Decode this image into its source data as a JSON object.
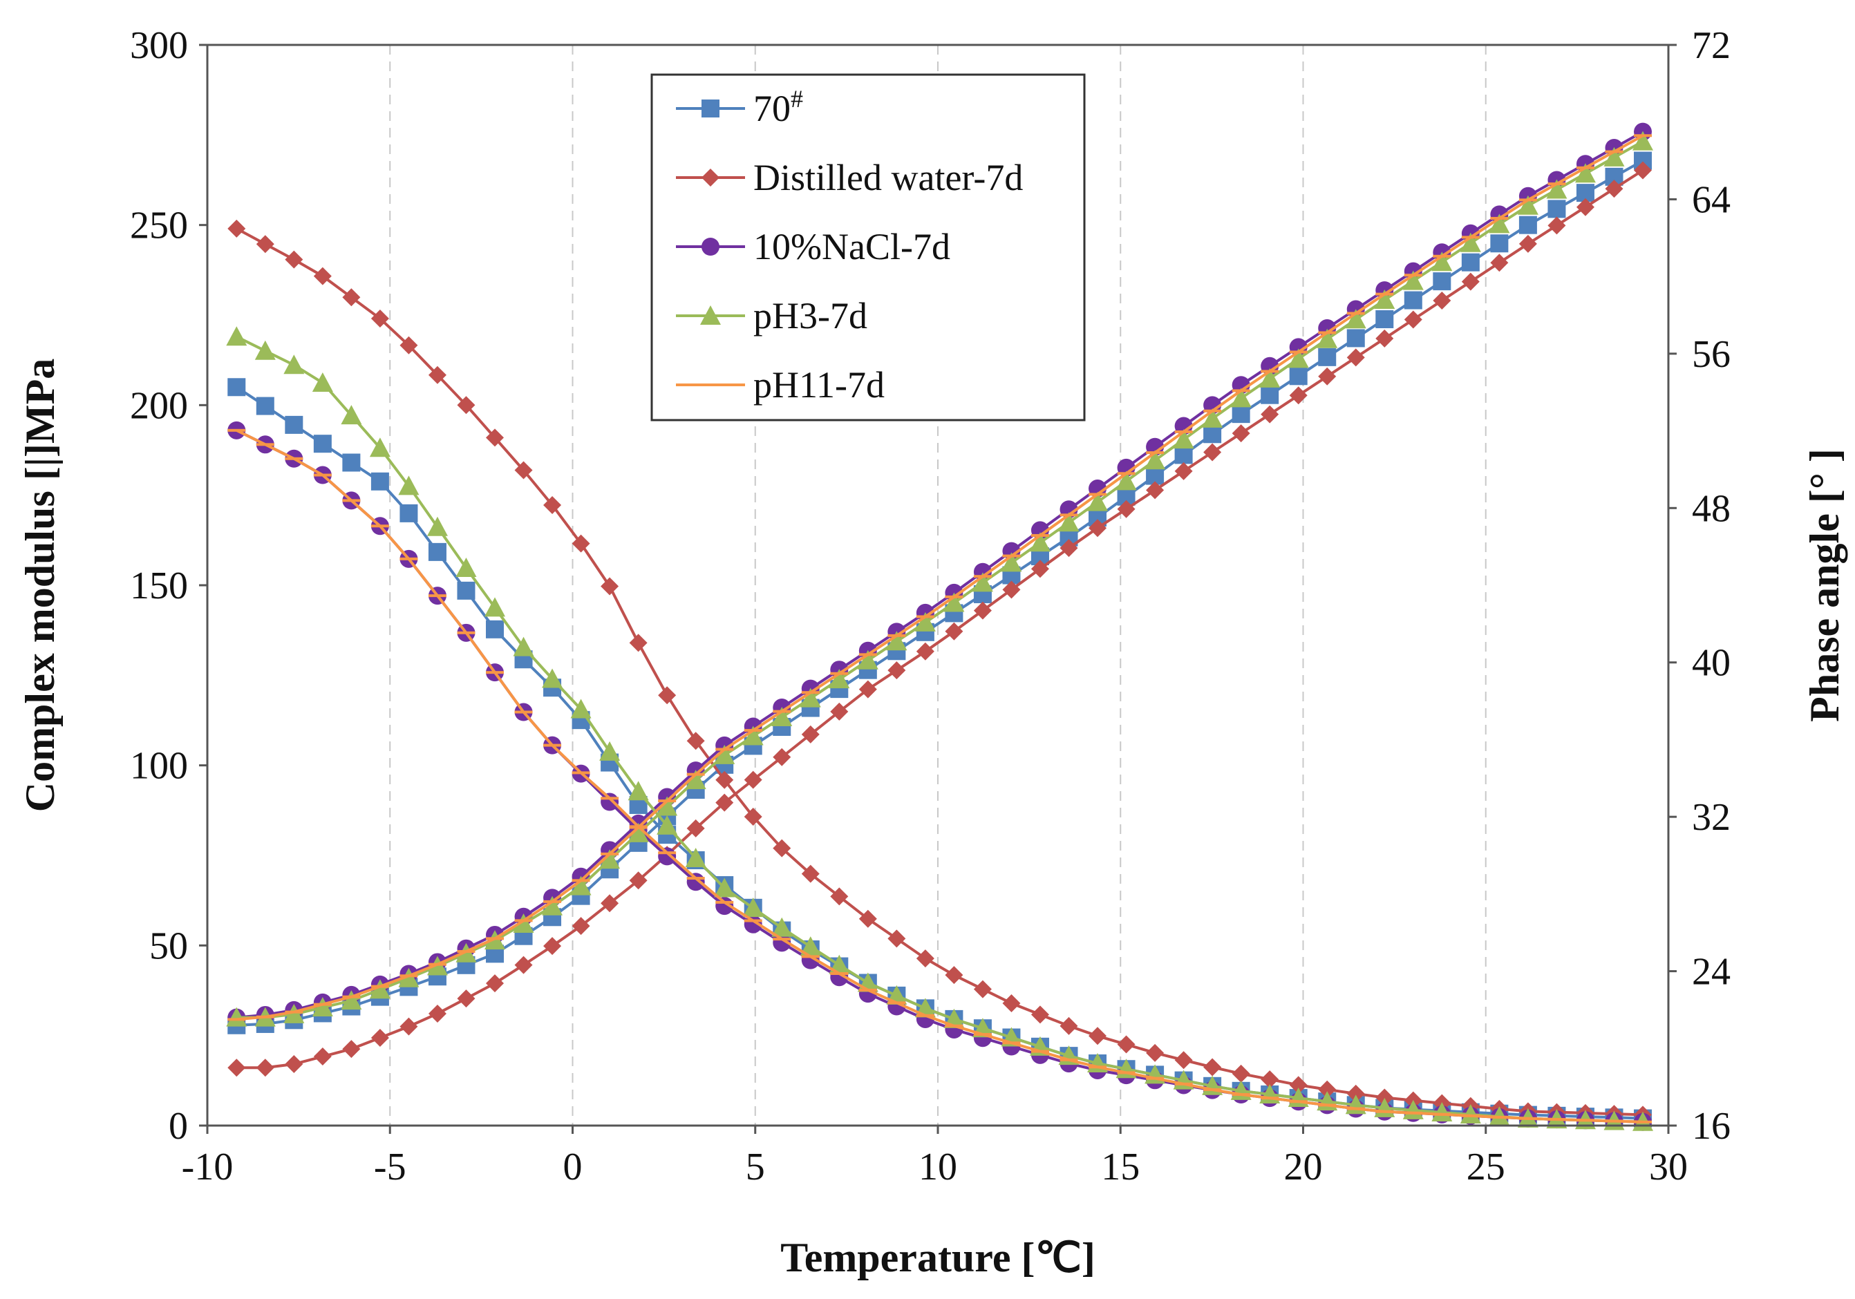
{
  "chart_data": {
    "type": "line",
    "title": "",
    "xlabel": "Temperature [℃]",
    "ylabel_left": "Complex modulus [|]MPa",
    "ylabel_right": "Phase angle [° ]",
    "xlim": [
      -10,
      30
    ],
    "ylim_left": [
      0,
      300
    ],
    "ylim_right": [
      16,
      72
    ],
    "x_ticks": [
      "-10",
      "-5",
      "0",
      "5",
      "10",
      "15",
      "20",
      "25",
      "30"
    ],
    "y_left_ticks": [
      "0",
      "50",
      "100",
      "150",
      "200",
      "250",
      "300"
    ],
    "y_right_ticks": [
      "16",
      "24",
      "32",
      "40",
      "48",
      "56",
      "64",
      "72"
    ],
    "grid": "vertical dashed",
    "legend_position": "top-center",
    "series": [
      {
        "name": "70#",
        "name_base": "70",
        "name_sup": "#",
        "color": "#4f81bd",
        "marker": "square",
        "complex_modulus": [
          [
            -9.2,
            205
          ],
          [
            -5,
            177
          ],
          [
            -2,
            136
          ],
          [
            0,
            116
          ],
          [
            2,
            86
          ],
          [
            4,
            68
          ],
          [
            6,
            52
          ],
          [
            8,
            40
          ],
          [
            10,
            31
          ],
          [
            14,
            18
          ],
          [
            18,
            10
          ],
          [
            22,
            5
          ],
          [
            26,
            3
          ],
          [
            29.3,
            2
          ]
        ],
        "phase_angle": [
          [
            -9.2,
            21.2
          ],
          [
            -8,
            21.3
          ],
          [
            -6,
            22.2
          ],
          [
            -4,
            23.5
          ],
          [
            -2,
            25
          ],
          [
            0,
            27.5
          ],
          [
            2,
            31
          ],
          [
            4,
            34.5
          ],
          [
            6,
            37
          ],
          [
            8,
            39.5
          ],
          [
            10,
            42
          ],
          [
            14,
            47
          ],
          [
            18,
            52.5
          ],
          [
            22,
            57.5
          ],
          [
            26,
            62.5
          ],
          [
            29.3,
            66
          ]
        ]
      },
      {
        "name": "Distilled water-7d",
        "color": "#c0504d",
        "marker": "diamond",
        "complex_modulus": [
          [
            -9.2,
            249
          ],
          [
            -7,
            237
          ],
          [
            -5,
            222
          ],
          [
            -3,
            201
          ],
          [
            -1,
            178
          ],
          [
            0,
            165
          ],
          [
            1,
            150
          ],
          [
            2,
            130
          ],
          [
            3,
            112
          ],
          [
            4,
            98
          ],
          [
            5,
            85
          ],
          [
            6,
            74
          ],
          [
            8,
            58
          ],
          [
            10,
            44
          ],
          [
            12,
            34
          ],
          [
            14,
            26
          ],
          [
            16,
            20
          ],
          [
            18,
            15
          ],
          [
            20,
            11
          ],
          [
            22,
            8
          ],
          [
            24,
            6
          ],
          [
            26,
            4
          ],
          [
            29.3,
            3
          ]
        ],
        "phase_angle": [
          [
            -9.2,
            19
          ],
          [
            -8,
            19
          ],
          [
            -6,
            20
          ],
          [
            -4,
            21.5
          ],
          [
            -2,
            23.5
          ],
          [
            0,
            26
          ],
          [
            2,
            29
          ],
          [
            4,
            32.5
          ],
          [
            6,
            35.5
          ],
          [
            8,
            38.5
          ],
          [
            10,
            41
          ],
          [
            14,
            46.5
          ],
          [
            18,
            51.5
          ],
          [
            22,
            56.5
          ],
          [
            26,
            61.5
          ],
          [
            29.3,
            65.5
          ]
        ]
      },
      {
        "name": "10%NaCl-7d",
        "color": "#7030a0",
        "marker": "circle",
        "complex_modulus": [
          [
            -9.2,
            193
          ],
          [
            -7,
            182
          ],
          [
            -5,
            164
          ],
          [
            -3,
            138
          ],
          [
            -1,
            110
          ],
          [
            0,
            100
          ],
          [
            1,
            90
          ],
          [
            2,
            80
          ],
          [
            4,
            62
          ],
          [
            6,
            49
          ],
          [
            8,
            37
          ],
          [
            10,
            28
          ],
          [
            14,
            16
          ],
          [
            18,
            9
          ],
          [
            22,
            4
          ],
          [
            26,
            2
          ],
          [
            29.3,
            1
          ]
        ],
        "phase_angle": [
          [
            -9.2,
            21.6
          ],
          [
            -8,
            21.8
          ],
          [
            -6,
            22.8
          ],
          [
            -4,
            24.2
          ],
          [
            -2,
            26
          ],
          [
            0,
            28.5
          ],
          [
            2,
            32
          ],
          [
            4,
            35.5
          ],
          [
            6,
            38
          ],
          [
            8,
            40.5
          ],
          [
            10,
            43
          ],
          [
            14,
            48.5
          ],
          [
            18,
            54
          ],
          [
            22,
            59
          ],
          [
            26,
            64
          ],
          [
            29.3,
            67.5
          ]
        ]
      },
      {
        "name": "pH3-7d",
        "color": "#9bbb59",
        "marker": "triangle",
        "complex_modulus": [
          [
            -9.2,
            219
          ],
          [
            -7,
            208
          ],
          [
            -5,
            185
          ],
          [
            -3,
            156
          ],
          [
            -1,
            128
          ],
          [
            0,
            119
          ],
          [
            1,
            104
          ],
          [
            2,
            90
          ],
          [
            4,
            67
          ],
          [
            6,
            53
          ],
          [
            8,
            40
          ],
          [
            10,
            31
          ],
          [
            14,
            18
          ],
          [
            18,
            10
          ],
          [
            22,
            5
          ],
          [
            26,
            2
          ],
          [
            29.3,
            1
          ]
        ],
        "phase_angle": [
          [
            -9.2,
            21.6
          ],
          [
            -8,
            21.6
          ],
          [
            -6,
            22.5
          ],
          [
            -4,
            24
          ],
          [
            -2,
            25.7
          ],
          [
            0,
            28
          ],
          [
            2,
            31.5
          ],
          [
            4,
            35
          ],
          [
            6,
            37.5
          ],
          [
            8,
            40
          ],
          [
            10,
            42.5
          ],
          [
            14,
            47.8
          ],
          [
            18,
            53.3
          ],
          [
            22,
            58.5
          ],
          [
            26,
            63.5
          ],
          [
            29.3,
            67
          ]
        ]
      },
      {
        "name": "pH11-7d",
        "color": "#f79646",
        "marker": "dash",
        "complex_modulus": [
          [
            -9.2,
            193
          ],
          [
            -7,
            182
          ],
          [
            -5,
            164
          ],
          [
            -3,
            138
          ],
          [
            -1,
            110
          ],
          [
            0,
            100
          ],
          [
            1,
            91
          ],
          [
            2,
            81
          ],
          [
            4,
            63
          ],
          [
            6,
            50
          ],
          [
            8,
            38
          ],
          [
            10,
            29
          ],
          [
            14,
            17
          ],
          [
            18,
            9
          ],
          [
            22,
            4
          ],
          [
            26,
            2
          ],
          [
            29.3,
            1
          ]
        ],
        "phase_angle": [
          [
            -9.2,
            21.5
          ],
          [
            -8,
            21.7
          ],
          [
            -6,
            22.7
          ],
          [
            -4,
            24.1
          ],
          [
            -2,
            25.8
          ],
          [
            0,
            28.3
          ],
          [
            2,
            31.8
          ],
          [
            4,
            35.3
          ],
          [
            6,
            37.8
          ],
          [
            8,
            40.3
          ],
          [
            10,
            42.8
          ],
          [
            14,
            48.2
          ],
          [
            18,
            53.7
          ],
          [
            22,
            58.8
          ],
          [
            26,
            63.8
          ],
          [
            29.3,
            67.3
          ]
        ]
      }
    ]
  }
}
